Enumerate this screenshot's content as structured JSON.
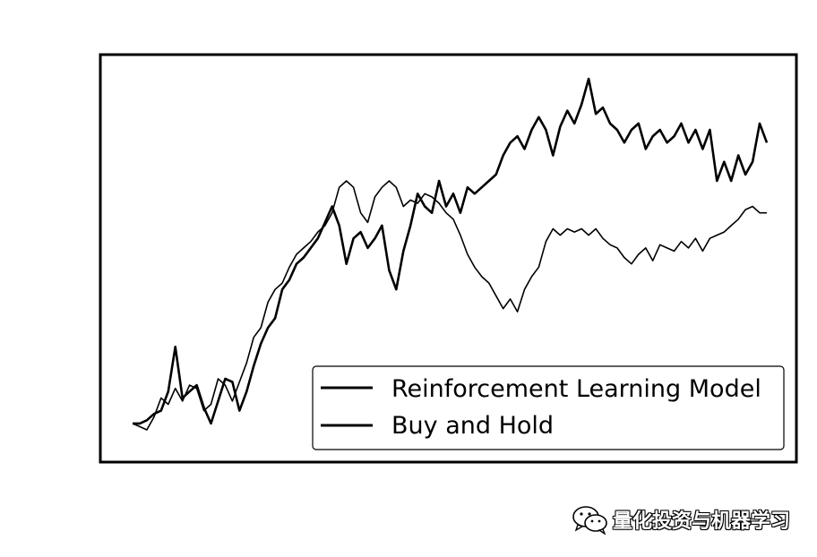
{
  "chart_data": {
    "type": "line",
    "title": "",
    "xlabel": "",
    "ylabel": "",
    "grid": false,
    "axes_ticks_visible": false,
    "legend_position": "lower-right",
    "series": [
      {
        "name": "Reinforcement Learning Model",
        "color": "#000000",
        "x": [
          0,
          8,
          16,
          24,
          32,
          40,
          48,
          56,
          64,
          72,
          80,
          88,
          96,
          104,
          112,
          120,
          128,
          136,
          144,
          152,
          160,
          168,
          176,
          184,
          192,
          200,
          208,
          216,
          224,
          232,
          240,
          248,
          256,
          264,
          272,
          280,
          288,
          296,
          304,
          312,
          320,
          328,
          336,
          344,
          352,
          360,
          368,
          376,
          384,
          392,
          400,
          408,
          416,
          424,
          432,
          440,
          448,
          456,
          464,
          472,
          480,
          488,
          496,
          504,
          512,
          520,
          528,
          536,
          544,
          552,
          560,
          568,
          576,
          584,
          592,
          600,
          608,
          616,
          624,
          632,
          640,
          648,
          656,
          664,
          672,
          680,
          688,
          696,
          704,
          712
        ],
        "y": [
          0.0,
          0.0,
          0.01,
          0.03,
          0.04,
          0.1,
          0.24,
          0.08,
          0.1,
          0.12,
          0.05,
          0.0,
          0.07,
          0.14,
          0.13,
          0.04,
          0.1,
          0.18,
          0.25,
          0.3,
          0.33,
          0.42,
          0.45,
          0.5,
          0.52,
          0.55,
          0.58,
          0.63,
          0.68,
          0.62,
          0.5,
          0.58,
          0.6,
          0.55,
          0.58,
          0.62,
          0.48,
          0.42,
          0.54,
          0.62,
          0.72,
          0.68,
          0.66,
          0.76,
          0.68,
          0.72,
          0.66,
          0.74,
          0.72,
          0.74,
          0.76,
          0.78,
          0.84,
          0.88,
          0.9,
          0.86,
          0.92,
          0.96,
          0.92,
          0.84,
          0.93,
          0.98,
          0.94,
          1.0,
          1.08,
          0.97,
          0.99,
          0.94,
          0.92,
          0.88,
          0.92,
          0.94,
          0.86,
          0.9,
          0.92,
          0.88,
          0.9,
          0.94,
          0.88,
          0.92,
          0.86,
          0.92,
          0.76,
          0.82,
          0.76,
          0.84,
          0.78,
          0.82,
          0.94,
          0.88
        ]
      },
      {
        "name": "Buy and Hold",
        "color": "#000000",
        "x": [
          0,
          8,
          16,
          24,
          32,
          40,
          48,
          56,
          64,
          72,
          80,
          88,
          96,
          104,
          112,
          120,
          128,
          136,
          144,
          152,
          160,
          168,
          176,
          184,
          192,
          200,
          208,
          216,
          224,
          232,
          240,
          248,
          256,
          264,
          272,
          280,
          288,
          296,
          304,
          312,
          320,
          328,
          336,
          344,
          352,
          360,
          368,
          376,
          384,
          392,
          400,
          408,
          416,
          424,
          432,
          440,
          448,
          456,
          464,
          472,
          480,
          488,
          496,
          504,
          512,
          520,
          528,
          536,
          544,
          552,
          560,
          568,
          576,
          584,
          592,
          600,
          608,
          616,
          624,
          632,
          640,
          648,
          656,
          664,
          672,
          680,
          688,
          696,
          704,
          712
        ],
        "y": [
          0.0,
          -0.01,
          -0.02,
          0.02,
          0.08,
          0.06,
          0.11,
          0.07,
          0.12,
          0.11,
          0.04,
          0.06,
          0.14,
          0.12,
          0.07,
          0.13,
          0.19,
          0.27,
          0.3,
          0.38,
          0.42,
          0.44,
          0.49,
          0.53,
          0.55,
          0.57,
          0.6,
          0.62,
          0.66,
          0.74,
          0.76,
          0.74,
          0.66,
          0.63,
          0.71,
          0.74,
          0.76,
          0.74,
          0.68,
          0.7,
          0.69,
          0.72,
          0.71,
          0.69,
          0.66,
          0.64,
          0.59,
          0.53,
          0.49,
          0.46,
          0.44,
          0.4,
          0.36,
          0.39,
          0.35,
          0.42,
          0.46,
          0.49,
          0.57,
          0.61,
          0.59,
          0.61,
          0.6,
          0.61,
          0.59,
          0.61,
          0.58,
          0.56,
          0.55,
          0.52,
          0.5,
          0.53,
          0.55,
          0.51,
          0.56,
          0.55,
          0.54,
          0.57,
          0.55,
          0.58,
          0.54,
          0.58,
          0.59,
          0.6,
          0.62,
          0.64,
          0.67,
          0.68,
          0.66,
          0.66
        ]
      }
    ]
  },
  "watermark": {
    "icon": "wechat-icon",
    "text": "量化投资与机器学习"
  }
}
